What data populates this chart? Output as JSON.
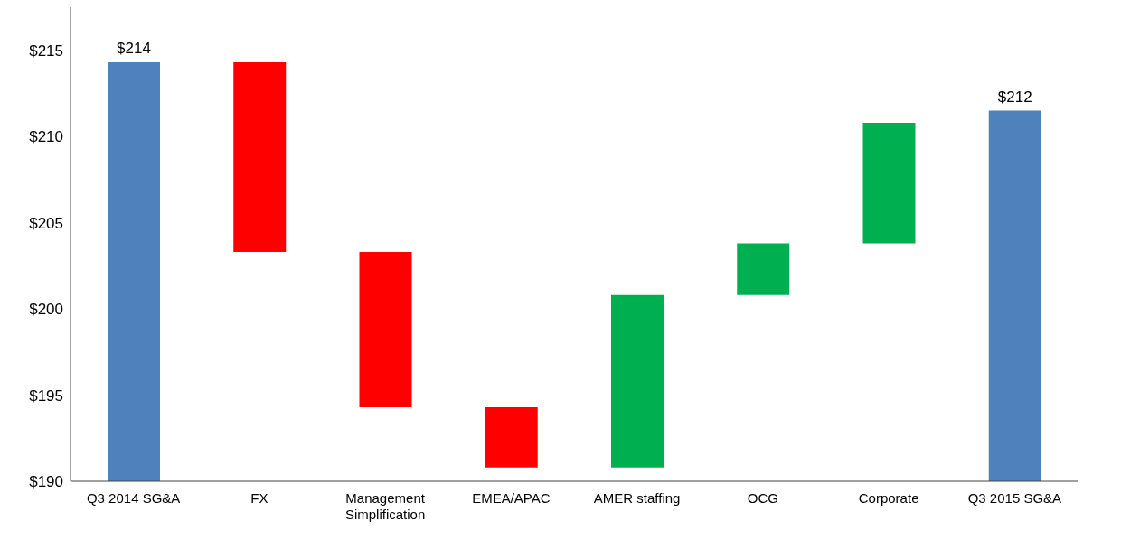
{
  "chart_data": {
    "type": "bar",
    "categories": [
      "Q3 2014 SG&A",
      "FX",
      "Management Simplification",
      "EMEA/APAC",
      "AMER staffing",
      "OCG",
      "Corporate",
      "Q3 2015 SG&A"
    ],
    "values": [
      214.3,
      -11.0,
      -9.0,
      -3.5,
      10.0,
      3.0,
      7.0,
      211.5
    ],
    "base": [
      null,
      214.3,
      203.3,
      194.3,
      190.8,
      200.8,
      203.8,
      null
    ],
    "colors": [
      "#4f81bd",
      "#ff0000",
      "#ff0000",
      "#ff0000",
      "#00b050",
      "#00b050",
      "#00b050",
      "#4f81bd"
    ],
    "value_labels": [
      "$214",
      null,
      null,
      null,
      null,
      null,
      null,
      "$212"
    ],
    "ylim": [
      190,
      217.5
    ],
    "yticks": [
      {
        "value": 190,
        "label": "$190"
      },
      {
        "value": 195,
        "label": "$195"
      },
      {
        "value": 200,
        "label": "$200"
      },
      {
        "value": 205,
        "label": "$205"
      },
      {
        "value": 210,
        "label": "$210"
      },
      {
        "value": 215,
        "label": "$215"
      }
    ],
    "grid": false,
    "legend": false
  }
}
